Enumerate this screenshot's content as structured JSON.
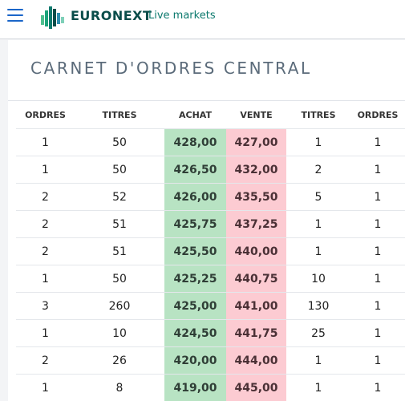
{
  "header": {
    "brand": "EURONEXT",
    "tagline": "Live markets"
  },
  "page": {
    "title": "CARNET D'ORDRES CENTRAL"
  },
  "colors": {
    "buy": "#b8e3c3",
    "sell": "#fccbd2",
    "brand": "#0a4d4a",
    "accent": "#1b66c9"
  },
  "table": {
    "columns": [
      "ORDRES",
      "TITRES",
      "ACHAT",
      "VENTE",
      "TITRES",
      "ORDRES"
    ],
    "rows": [
      [
        "1",
        "50",
        "428,00",
        "427,00",
        "1",
        "1"
      ],
      [
        "1",
        "50",
        "426,50",
        "432,00",
        "2",
        "1"
      ],
      [
        "2",
        "52",
        "426,00",
        "435,50",
        "5",
        "1"
      ],
      [
        "2",
        "51",
        "425,75",
        "437,25",
        "1",
        "1"
      ],
      [
        "2",
        "51",
        "425,50",
        "440,00",
        "1",
        "1"
      ],
      [
        "1",
        "50",
        "425,25",
        "440,75",
        "10",
        "1"
      ],
      [
        "3",
        "260",
        "425,00",
        "441,00",
        "130",
        "1"
      ],
      [
        "1",
        "10",
        "424,50",
        "441,75",
        "25",
        "1"
      ],
      [
        "2",
        "26",
        "420,00",
        "444,00",
        "1",
        "1"
      ],
      [
        "1",
        "8",
        "419,00",
        "445,00",
        "1",
        "1"
      ]
    ]
  }
}
